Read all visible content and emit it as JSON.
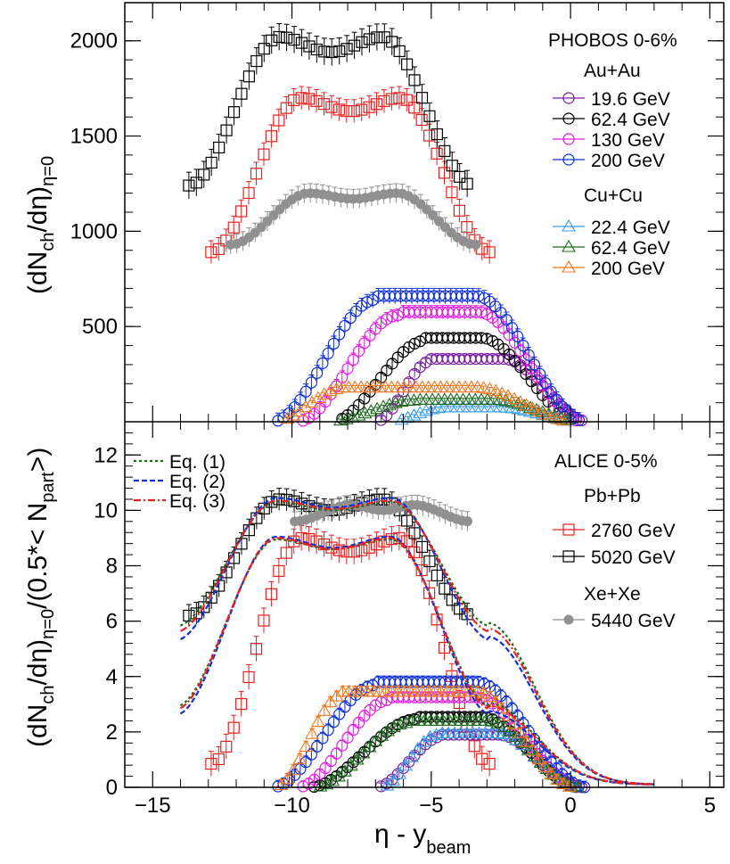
{
  "colors": {
    "au196": "#7a1fa2",
    "au624": "#000000",
    "au130": "#e020e0",
    "au200": "#1030d8",
    "cu224": "#3a9ee8",
    "cu624": "#1e6b1e",
    "cu200": "#f07820",
    "pb2760": "#e82020",
    "pb5020": "#000000",
    "xe5440": "#909090",
    "eq1": "#1e6b1e",
    "eq2": "#1030d8",
    "eq3": "#e82020"
  },
  "chart_data": [
    {
      "type": "scatter",
      "panel": "top",
      "title": "PHOBOS 0-6%",
      "ylabel_main": "(dN",
      "ylabel_sub1": "ch",
      "ylabel_mid": "/dη)",
      "ylabel_sub2": "η=0",
      "xlim": [
        -16,
        5.5
      ],
      "ylim": [
        0,
        2200
      ],
      "yticks": [
        500,
        1000,
        1500,
        2000
      ],
      "yticklabels": [
        "500",
        "1000",
        "1500",
        "2000"
      ],
      "legend_groups": [
        {
          "title": "Au+Au",
          "entries": [
            "19.6 GeV",
            "62.4 GeV",
            "130 GeV",
            "200 GeV"
          ]
        },
        {
          "title": "Cu+Cu",
          "entries": [
            "22.4 GeV",
            "62.4 GeV",
            "200 GeV"
          ]
        }
      ],
      "series": [
        {
          "name": "PHOBOS Pb+Pb 2760 GeV",
          "system": "Pb+Pb",
          "marker": "square",
          "color": "pb2760",
          "xmin": -12.9,
          "xmax": -2.9,
          "step": 0.27,
          "profile": "twin",
          "peak": 1700,
          "dip": 1630,
          "edge": 890,
          "err": 60
        },
        {
          "name": "PHOBOS Pb+Pb 5020 GeV",
          "system": "Pb+Pb",
          "marker": "square",
          "color": "pb5020",
          "xmin": -13.7,
          "xmax": -3.5,
          "step": 0.27,
          "profile": "twin",
          "peak": 2020,
          "dip": 1940,
          "edge": 1240,
          "err": 70
        },
        {
          "name": "PHOBOS Xe+Xe 5440 GeV",
          "system": "Xe+Xe",
          "marker": "circle-filled",
          "color": "xe5440",
          "xmin": -12.2,
          "xmax": -3.4,
          "step": 0.22,
          "profile": "twin",
          "peak": 1200,
          "dip": 1170,
          "edge": 930,
          "err": 50
        },
        {
          "name": "19.6 GeV",
          "system": "Au+Au",
          "marker": "circle",
          "color": "au196",
          "xmin": -7.0,
          "xmax": 2.4,
          "step": 0.2,
          "profile": "plateau",
          "plat": 330,
          "cstart": -5.0,
          "cend": -2.4,
          "fall": 1.4,
          "err": 20
        },
        {
          "name": "62.4 GeV",
          "system": "Au+Au",
          "marker": "circle",
          "color": "au624",
          "xmin": -8.6,
          "xmax": 2.0,
          "step": 0.2,
          "profile": "plateau",
          "plat": 440,
          "cstart": -5.2,
          "cend": -3.2,
          "fall": 1.6,
          "err": 25
        },
        {
          "name": "130 GeV",
          "system": "Au+Au",
          "marker": "circle",
          "color": "au130",
          "xmin": -9.8,
          "xmax": 1.8,
          "step": 0.2,
          "profile": "plateau",
          "plat": 575,
          "cstart": -6.2,
          "cend": -3.3,
          "fall": 1.7,
          "err": 35
        },
        {
          "name": "200 GeV",
          "system": "Au+Au",
          "marker": "circle",
          "color": "au200",
          "xmin": -10.7,
          "xmax": 1.6,
          "step": 0.2,
          "profile": "plateau",
          "plat": 660,
          "cstart": -7.0,
          "cend": -3.4,
          "fall": 1.8,
          "err": 40
        },
        {
          "name": "22.4 GeV",
          "system": "Cu+Cu",
          "marker": "triangle",
          "color": "cu224",
          "xmin": -6.5,
          "xmax": 1.4,
          "step": 0.22,
          "profile": "plateau",
          "plat": 75,
          "cstart": -4.6,
          "cend": -2.5,
          "fall": 1.3,
          "err": 6
        },
        {
          "name": "62.4 GeV",
          "system": "Cu+Cu",
          "marker": "triangle",
          "color": "cu624",
          "xmin": -8.7,
          "xmax": 1.3,
          "step": 0.22,
          "profile": "plateau",
          "plat": 115,
          "cstart": -5.6,
          "cend": -2.8,
          "fall": 1.5,
          "err": 8
        },
        {
          "name": "200 GeV",
          "system": "Cu+Cu",
          "marker": "triangle",
          "color": "cu200",
          "xmin": -10.6,
          "xmax": 1.0,
          "step": 0.22,
          "profile": "plateau",
          "plat": 180,
          "cstart": -8.2,
          "cend": -3.4,
          "fall": 1.6,
          "err": 10
        }
      ]
    },
    {
      "type": "scatter",
      "panel": "bottom",
      "title": "ALICE 0-5%",
      "xlabel_main": "η - y",
      "xlabel_sub": "beam",
      "ylabel_main": "(dN",
      "ylabel_sub1": "ch",
      "ylabel_mid": "/dη)",
      "ylabel_sub2": "η=0",
      "ylabel_rest": "/(0.5*< N",
      "ylabel_sub3": "part",
      "ylabel_end": ">)",
      "xlim": [
        -16,
        5.5
      ],
      "ylim": [
        0,
        13.2
      ],
      "xticks": [
        -15,
        -10,
        -5,
        0,
        5
      ],
      "xticklabels": [
        "−15",
        "−10",
        "−5",
        "0",
        "5"
      ],
      "yticks": [
        0,
        2,
        4,
        6,
        8,
        10,
        12
      ],
      "yticklabels": [
        "0",
        "2",
        "4",
        "6",
        "8",
        "10",
        "12"
      ],
      "legend_groups": [
        {
          "title": "Pb+Pb",
          "entries": [
            "2760 GeV",
            "5020 GeV"
          ]
        },
        {
          "title": "Xe+Xe",
          "entries": [
            "5440 GeV"
          ]
        }
      ],
      "curve_legend": [
        "Eq. (1)",
        "Eq. (2)",
        "Eq. (3)"
      ],
      "series": [
        {
          "name": "2760 GeV",
          "system": "Pb+Pb",
          "marker": "square",
          "color": "pb2760",
          "xmin": -12.9,
          "xmax": -2.9,
          "step": 0.27,
          "profile": "twin",
          "peak": 9.0,
          "dip": 8.5,
          "edge": 0.85,
          "err": 0.45
        },
        {
          "name": "5020 GeV",
          "system": "Pb+Pb",
          "marker": "square",
          "color": "pb5020",
          "xmin": -13.7,
          "xmax": -3.5,
          "step": 0.27,
          "profile": "twin",
          "peak": 10.4,
          "dip": 10.0,
          "edge": 6.2,
          "err": 0.4
        },
        {
          "name": "5440 GeV",
          "system": "Xe+Xe",
          "marker": "circle-filled",
          "color": "xe5440",
          "xmin": -9.9,
          "xmax": -3.6,
          "step": 0.2,
          "profile": "twin",
          "peak": 10.2,
          "dip": 10.0,
          "edge": 9.6,
          "err": 0.35
        },
        {
          "name": "Au+Au 19.6 GeV",
          "system": "Au+Au",
          "marker": "circle",
          "color": "au196",
          "xmin": -7.0,
          "xmax": 2.4,
          "step": 0.2,
          "profile": "plateau",
          "plat": 1.9,
          "cstart": -4.6,
          "cend": -2.6,
          "fall": 1.4,
          "err": 0.12
        },
        {
          "name": "Au+Au 62.4 GeV",
          "system": "Au+Au",
          "marker": "circle",
          "color": "au624",
          "xmin": -9.4,
          "xmax": 2.0,
          "step": 0.2,
          "profile": "plateau",
          "plat": 2.55,
          "cstart": -5.5,
          "cend": -3.2,
          "fall": 1.6,
          "err": 0.15
        },
        {
          "name": "Au+Au 130 GeV",
          "system": "Au+Au",
          "marker": "circle",
          "color": "au130",
          "xmin": -9.8,
          "xmax": 1.8,
          "step": 0.2,
          "profile": "plateau",
          "plat": 3.25,
          "cstart": -6.5,
          "cend": -3.4,
          "fall": 1.7,
          "err": 0.2
        },
        {
          "name": "Au+Au 200 GeV",
          "system": "Au+Au",
          "marker": "circle",
          "color": "au200",
          "xmin": -10.7,
          "xmax": 1.6,
          "step": 0.2,
          "profile": "plateau",
          "plat": 3.8,
          "cstart": -7.0,
          "cend": -3.4,
          "fall": 1.8,
          "err": 0.22
        },
        {
          "name": "Cu+Cu 22.4 GeV",
          "system": "Cu+Cu",
          "marker": "triangle",
          "color": "cu224",
          "xmin": -6.8,
          "xmax": 1.4,
          "step": 0.22,
          "profile": "plateau",
          "plat": 1.95,
          "cstart": -4.8,
          "cend": -2.6,
          "fall": 1.3,
          "err": 0.12
        },
        {
          "name": "Cu+Cu 62.4 GeV",
          "system": "Cu+Cu",
          "marker": "triangle",
          "color": "cu624",
          "xmin": -9.2,
          "xmax": 1.3,
          "step": 0.22,
          "profile": "plateau",
          "plat": 2.4,
          "cstart": -5.8,
          "cend": -3.0,
          "fall": 1.5,
          "err": 0.14
        },
        {
          "name": "Cu+Cu 200 GeV",
          "system": "Cu+Cu",
          "marker": "triangle",
          "color": "cu200",
          "xmin": -10.6,
          "xmax": 1.0,
          "step": 0.22,
          "profile": "plateau",
          "plat": 3.45,
          "cstart": -8.2,
          "cend": -3.4,
          "fall": 1.6,
          "err": 0.2
        }
      ],
      "curves": [
        {
          "name": "Eq. (1)",
          "color": "eq1",
          "dash": "3,3",
          "bands": [
            {
              "xmin": -14.0,
              "xmax": 3.0,
              "profile": "twin",
              "peak": 10.3,
              "dip": 10.0,
              "edge": 5.8
            },
            {
              "xmin": -14.0,
              "xmax": 3.0,
              "profile": "twin",
              "peak": 8.95,
              "dip": 8.6,
              "edge": 2.9
            }
          ]
        },
        {
          "name": "Eq. (2)",
          "color": "eq2",
          "dash": "6,3",
          "bands": [
            {
              "xmin": -14.0,
              "xmax": 3.0,
              "profile": "twin",
              "peak": 10.45,
              "dip": 10.1,
              "edge": 5.3
            },
            {
              "xmin": -14.0,
              "xmax": 3.0,
              "profile": "twin",
              "peak": 9.05,
              "dip": 8.65,
              "edge": 2.6
            }
          ]
        },
        {
          "name": "Eq. (3)",
          "color": "eq3",
          "dash": "8,3,2,3",
          "bands": [
            {
              "xmin": -14.0,
              "xmax": 3.0,
              "profile": "twin",
              "peak": 10.35,
              "dip": 10.05,
              "edge": 5.6
            },
            {
              "xmin": -14.0,
              "xmax": 3.0,
              "profile": "twin",
              "peak": 9.0,
              "dip": 8.6,
              "edge": 2.8
            }
          ]
        }
      ]
    }
  ]
}
